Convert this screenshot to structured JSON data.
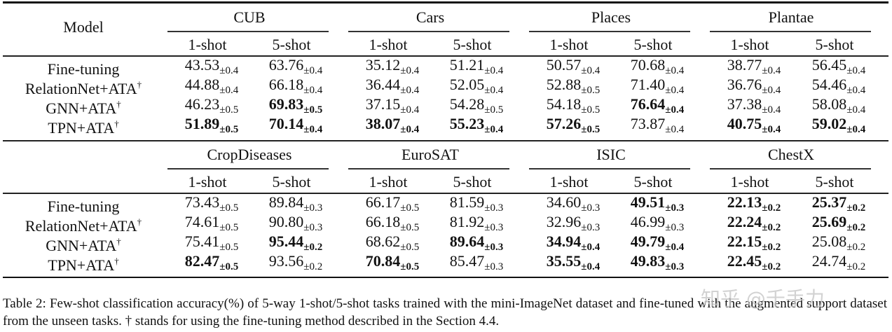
{
  "tables": [
    {
      "header": {
        "model_label": "Model",
        "datasets": [
          "CUB",
          "Cars",
          "Places",
          "Plantae"
        ],
        "shots": [
          "1-shot",
          "5-shot",
          "1-shot",
          "5-shot",
          "1-shot",
          "5-shot",
          "1-shot",
          "5-shot"
        ]
      },
      "rows": [
        {
          "model": "Fine-tuning",
          "dagger": "",
          "cells": [
            {
              "v": "43.53",
              "pm": "±0.4",
              "bold": false
            },
            {
              "v": "63.76",
              "pm": "±0.4",
              "bold": false
            },
            {
              "v": "35.12",
              "pm": "±0.4",
              "bold": false
            },
            {
              "v": "51.21",
              "pm": "±0.4",
              "bold": false
            },
            {
              "v": "50.57",
              "pm": "±0.4",
              "bold": false
            },
            {
              "v": "70.68",
              "pm": "±0.4",
              "bold": false
            },
            {
              "v": "38.77",
              "pm": "±0.4",
              "bold": false
            },
            {
              "v": "56.45",
              "pm": "±0.4",
              "bold": false
            }
          ]
        },
        {
          "model": "RelationNet+ATA",
          "dagger": "†",
          "cells": [
            {
              "v": "44.88",
              "pm": "±0.4",
              "bold": false
            },
            {
              "v": "66.18",
              "pm": "±0.4",
              "bold": false
            },
            {
              "v": "36.44",
              "pm": "±0.4",
              "bold": false
            },
            {
              "v": "52.05",
              "pm": "±0.4",
              "bold": false
            },
            {
              "v": "52.88",
              "pm": "±0.5",
              "bold": false
            },
            {
              "v": "71.40",
              "pm": "±0.4",
              "bold": false
            },
            {
              "v": "36.76",
              "pm": "±0.4",
              "bold": false
            },
            {
              "v": "54.46",
              "pm": "±0.4",
              "bold": false
            }
          ]
        },
        {
          "model": "GNN+ATA",
          "dagger": "†",
          "cells": [
            {
              "v": "46.23",
              "pm": "±0.5",
              "bold": false
            },
            {
              "v": "69.83",
              "pm": "±0.5",
              "bold": true
            },
            {
              "v": "37.15",
              "pm": "±0.4",
              "bold": false
            },
            {
              "v": "54.28",
              "pm": "±0.5",
              "bold": false
            },
            {
              "v": "54.18",
              "pm": "±0.5",
              "bold": false
            },
            {
              "v": "76.64",
              "pm": "±0.4",
              "bold": true
            },
            {
              "v": "37.38",
              "pm": "±0.4",
              "bold": false
            },
            {
              "v": "58.08",
              "pm": "±0.4",
              "bold": false
            }
          ]
        },
        {
          "model": "TPN+ATA",
          "dagger": "†",
          "cells": [
            {
              "v": "51.89",
              "pm": "±0.5",
              "bold": true
            },
            {
              "v": "70.14",
              "pm": "±0.4",
              "bold": true
            },
            {
              "v": "38.07",
              "pm": "±0.4",
              "bold": true
            },
            {
              "v": "55.23",
              "pm": "±0.4",
              "bold": true
            },
            {
              "v": "57.26",
              "pm": "±0.5",
              "bold": true
            },
            {
              "v": "73.87",
              "pm": "±0.4",
              "bold": false
            },
            {
              "v": "40.75",
              "pm": "±0.4",
              "bold": true
            },
            {
              "v": "59.02",
              "pm": "±0.4",
              "bold": true
            }
          ]
        }
      ]
    },
    {
      "header": {
        "model_label": "",
        "datasets": [
          "CropDiseases",
          "EuroSAT",
          "ISIC",
          "ChestX"
        ],
        "shots": [
          "1-shot",
          "5-shot",
          "1-shot",
          "5-shot",
          "1-shot",
          "5-shot",
          "1-shot",
          "5-shot"
        ]
      },
      "rows": [
        {
          "model": "Fine-tuning",
          "dagger": "",
          "cells": [
            {
              "v": "73.43",
              "pm": "±0.5",
              "bold": false
            },
            {
              "v": "89.84",
              "pm": "±0.3",
              "bold": false
            },
            {
              "v": "66.17",
              "pm": "±0.5",
              "bold": false
            },
            {
              "v": "81.59",
              "pm": "±0.3",
              "bold": false
            },
            {
              "v": "34.60",
              "pm": "±0.3",
              "bold": false
            },
            {
              "v": "49.51",
              "pm": "±0.3",
              "bold": true
            },
            {
              "v": "22.13",
              "pm": "±0.2",
              "bold": true
            },
            {
              "v": "25.37",
              "pm": "±0.2",
              "bold": true
            }
          ]
        },
        {
          "model": "RelationNet+ATA",
          "dagger": "†",
          "cells": [
            {
              "v": "74.61",
              "pm": "±0.5",
              "bold": false
            },
            {
              "v": "90.80",
              "pm": "±0.3",
              "bold": false
            },
            {
              "v": "66.18",
              "pm": "±0.5",
              "bold": false
            },
            {
              "v": "81.92",
              "pm": "±0.3",
              "bold": false
            },
            {
              "v": "32.96",
              "pm": "±0.3",
              "bold": false
            },
            {
              "v": "46.99",
              "pm": "±0.3",
              "bold": false
            },
            {
              "v": "22.24",
              "pm": "±0.2",
              "bold": true
            },
            {
              "v": "25.69",
              "pm": "±0.2",
              "bold": true
            }
          ]
        },
        {
          "model": "GNN+ATA",
          "dagger": "†",
          "cells": [
            {
              "v": "75.41",
              "pm": "±0.5",
              "bold": false
            },
            {
              "v": "95.44",
              "pm": "±0.2",
              "bold": true
            },
            {
              "v": "68.62",
              "pm": "±0.5",
              "bold": false
            },
            {
              "v": "89.64",
              "pm": "±0.3",
              "bold": true
            },
            {
              "v": "34.94",
              "pm": "±0.4",
              "bold": true
            },
            {
              "v": "49.79",
              "pm": "±0.4",
              "bold": true
            },
            {
              "v": "22.15",
              "pm": "±0.2",
              "bold": true
            },
            {
              "v": "25.08",
              "pm": "±0.2",
              "bold": false
            }
          ]
        },
        {
          "model": "TPN+ATA",
          "dagger": "†",
          "cells": [
            {
              "v": "82.47",
              "pm": "±0.5",
              "bold": true
            },
            {
              "v": "93.56",
              "pm": "±0.2",
              "bold": false
            },
            {
              "v": "70.84",
              "pm": "±0.5",
              "bold": true
            },
            {
              "v": "85.47",
              "pm": "±0.3",
              "bold": false
            },
            {
              "v": "35.55",
              "pm": "±0.4",
              "bold": true
            },
            {
              "v": "49.83",
              "pm": "±0.3",
              "bold": true
            },
            {
              "v": "22.45",
              "pm": "±0.2",
              "bold": true
            },
            {
              "v": "24.74",
              "pm": "±0.2",
              "bold": false
            }
          ]
        }
      ]
    }
  ],
  "caption": "Table 2: Few-shot classification accuracy(%) of 5-way 1-shot/5-shot tasks trained with the mini-ImageNet dataset and fine-tuned with the augmented support dataset from the unseen tasks. † stands for using the fine-tuning method described in the Section 4.4.",
  "watermark": "知乎 @千手力"
}
